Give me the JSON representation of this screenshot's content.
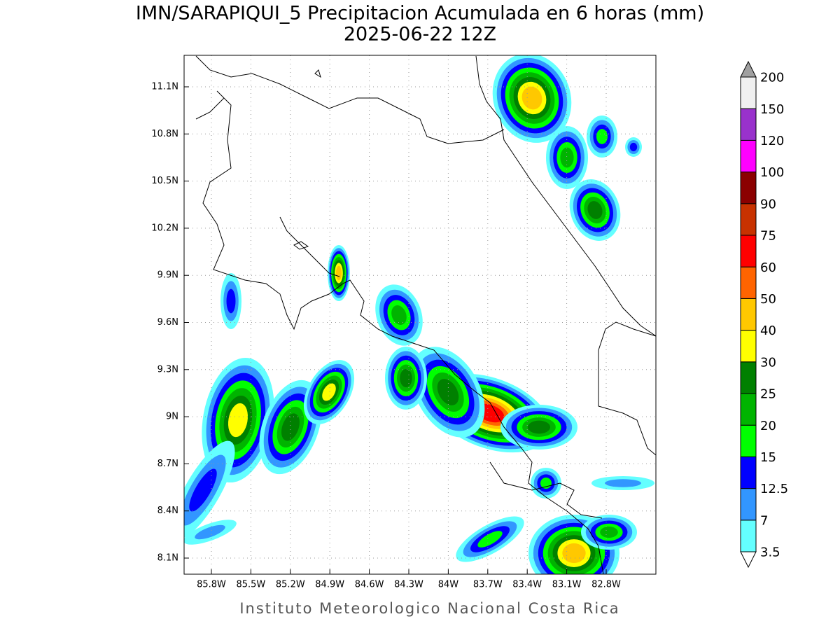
{
  "title": "IMN/SARAPIQUI_5 Precipitacion Acumulada en 6 horas (mm)",
  "subtitle": "2025-06-22 12Z",
  "map": {
    "lat_labels": [
      "11.1N",
      "10.8N",
      "10.5N",
      "10.2N",
      "9.9N",
      "9.6N",
      "9.3N",
      "9N",
      "8.7N",
      "8.4N",
      "8.1N"
    ],
    "lon_labels": [
      "85.8W",
      "85.5W",
      "85.2W",
      "84.9W",
      "84.6W",
      "84.3W",
      "84W",
      "83.7W",
      "83.4W",
      "83.1W",
      "82.8W"
    ]
  },
  "colorbar": {
    "levels": [
      3.5,
      7,
      12.5,
      15,
      20,
      25,
      30,
      40,
      50,
      60,
      75,
      90,
      100,
      120,
      150,
      200
    ],
    "colors": [
      "#ffffff",
      "#64ffff",
      "#3296ff",
      "#0000ff",
      "#00ff00",
      "#00b400",
      "#008000",
      "#ffff00",
      "#ffc800",
      "#ff6400",
      "#ff0000",
      "#c83200",
      "#8b0000",
      "#ff00ff",
      "#9932cc",
      "#f0f0f0",
      "#a0a0a0"
    ]
  },
  "footer": "Instituto Meteorologico Nacional Costa Rica"
}
